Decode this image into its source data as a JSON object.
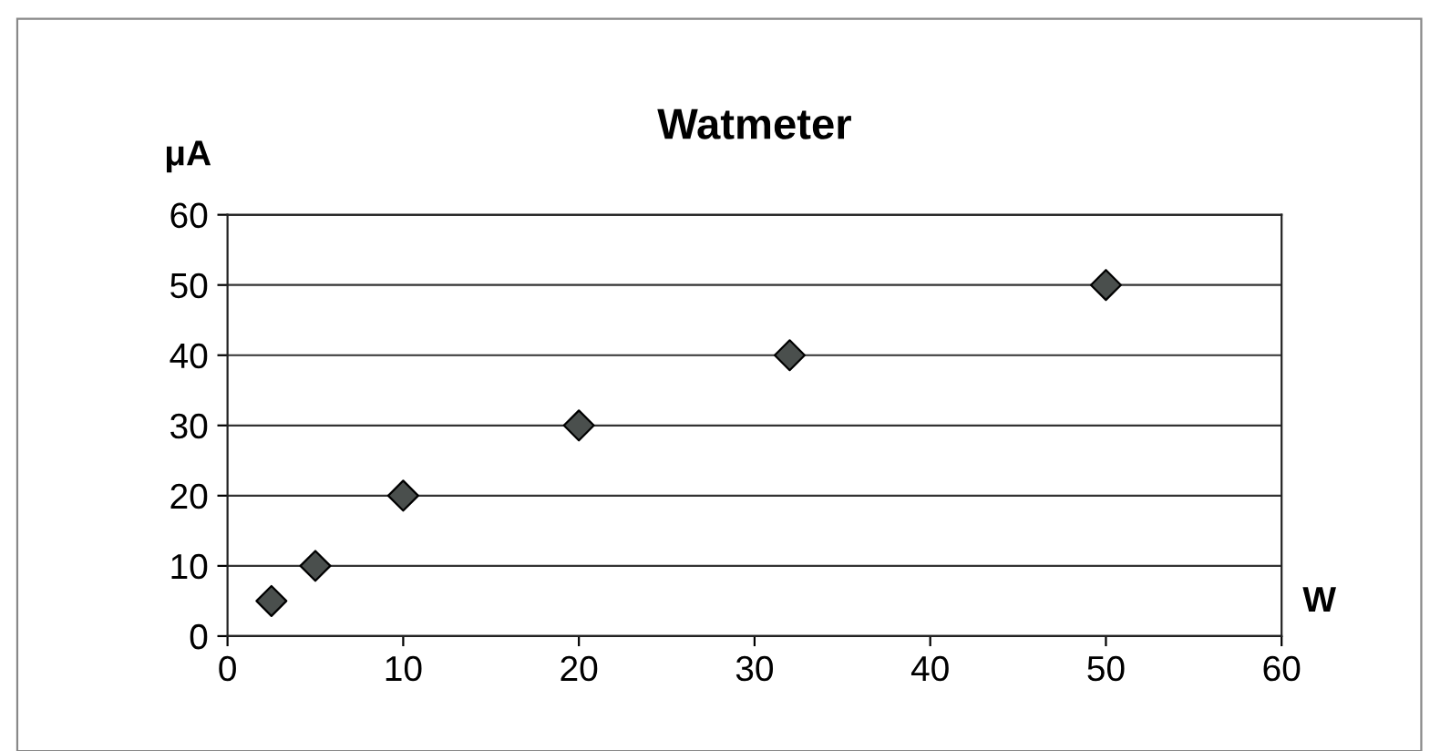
{
  "chart_data": {
    "type": "scatter",
    "title": "Watmeter",
    "xlabel": "W",
    "ylabel": "μA",
    "x": [
      2.5,
      5,
      10,
      20,
      32,
      50
    ],
    "series": [
      {
        "color": "#4a4f4d",
        "values": [
          5,
          10,
          20,
          30,
          40,
          50
        ]
      }
    ],
    "xlim": [
      0,
      60
    ],
    "xticks": [
      0,
      10,
      20,
      30,
      40,
      50,
      60
    ],
    "ylim": [
      0,
      60
    ],
    "yticks": [
      0,
      10,
      20,
      30,
      40,
      50,
      60
    ],
    "grid": "y",
    "marker": "diamond",
    "legend": false
  }
}
